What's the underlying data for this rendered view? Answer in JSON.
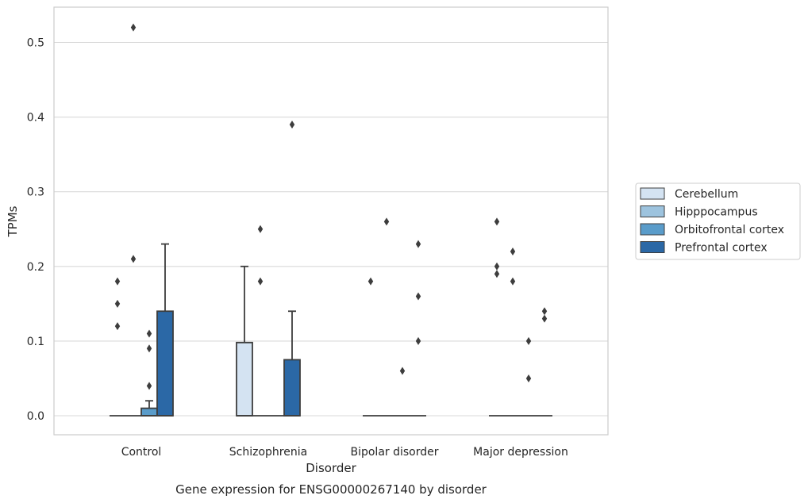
{
  "chart_data": {
    "type": "box",
    "title": "Gene expression for ENSG00000267140 by disorder",
    "xlabel": "Disorder",
    "ylabel": "TPMs",
    "ylim": [
      -0.025,
      0.548
    ],
    "yticks": [
      "0.0",
      "0.1",
      "0.2",
      "0.3",
      "0.4",
      "0.5"
    ],
    "grid": true,
    "legend_position": "right",
    "categories": [
      "Control",
      "Schizophrenia",
      "Bipolar disorder",
      "Major depression"
    ],
    "series": [
      {
        "name": "Cerebellum",
        "color": "#d4e3f2",
        "boxes": [
          {
            "q1": 0,
            "median": 0,
            "q3": 0,
            "whisker_low": 0,
            "whisker_high": 0,
            "outliers": [
              0.12,
              0.15,
              0.18
            ]
          },
          {
            "q1": 0,
            "median": 0,
            "q3": 0.098,
            "whisker_low": 0,
            "whisker_high": 0.2,
            "outliers": []
          },
          {
            "q1": 0,
            "median": 0,
            "q3": 0,
            "whisker_low": 0,
            "whisker_high": 0,
            "outliers": [
              0.18
            ]
          },
          {
            "q1": 0,
            "median": 0,
            "q3": 0,
            "whisker_low": 0,
            "whisker_high": 0,
            "outliers": [
              0.19,
              0.2,
              0.26
            ]
          }
        ]
      },
      {
        "name": "Hipppocampus",
        "color": "#9dc3de",
        "boxes": [
          {
            "q1": 0,
            "median": 0,
            "q3": 0,
            "whisker_low": 0,
            "whisker_high": 0,
            "outliers": [
              0.21,
              0.52
            ]
          },
          {
            "q1": 0,
            "median": 0,
            "q3": 0,
            "whisker_low": 0,
            "whisker_high": 0,
            "outliers": [
              0.18,
              0.25
            ]
          },
          {
            "q1": 0,
            "median": 0,
            "q3": 0,
            "whisker_low": 0,
            "whisker_high": 0,
            "outliers": [
              0.26
            ]
          },
          {
            "q1": 0,
            "median": 0,
            "q3": 0,
            "whisker_low": 0,
            "whisker_high": 0,
            "outliers": [
              0.18,
              0.22
            ]
          }
        ]
      },
      {
        "name": "Orbitofrontal cortex",
        "color": "#5a9cca",
        "boxes": [
          {
            "q1": 0,
            "median": 0,
            "q3": 0.01,
            "whisker_low": 0,
            "whisker_high": 0.02,
            "outliers": [
              0.04,
              0.09,
              0.11
            ]
          },
          {
            "q1": 0,
            "median": 0,
            "q3": 0,
            "whisker_low": 0,
            "whisker_high": 0,
            "outliers": []
          },
          {
            "q1": 0,
            "median": 0,
            "q3": 0,
            "whisker_low": 0,
            "whisker_high": 0,
            "outliers": [
              0.06
            ]
          },
          {
            "q1": 0,
            "median": 0,
            "q3": 0,
            "whisker_low": 0,
            "whisker_high": 0,
            "outliers": [
              0.05,
              0.1
            ]
          }
        ]
      },
      {
        "name": "Prefrontal cortex",
        "color": "#2b68a6",
        "boxes": [
          {
            "q1": 0,
            "median": 0,
            "q3": 0.14,
            "whisker_low": 0,
            "whisker_high": 0.23,
            "outliers": []
          },
          {
            "q1": 0,
            "median": 0,
            "q3": 0.075,
            "whisker_low": 0,
            "whisker_high": 0.14,
            "outliers": [
              0.39
            ]
          },
          {
            "q1": 0,
            "median": 0,
            "q3": 0,
            "whisker_low": 0,
            "whisker_high": 0,
            "outliers": [
              0.1,
              0.16,
              0.23
            ]
          },
          {
            "q1": 0,
            "median": 0,
            "q3": 0,
            "whisker_low": 0,
            "whisker_high": 0,
            "outliers": [
              0.13,
              0.14
            ]
          }
        ]
      }
    ]
  }
}
